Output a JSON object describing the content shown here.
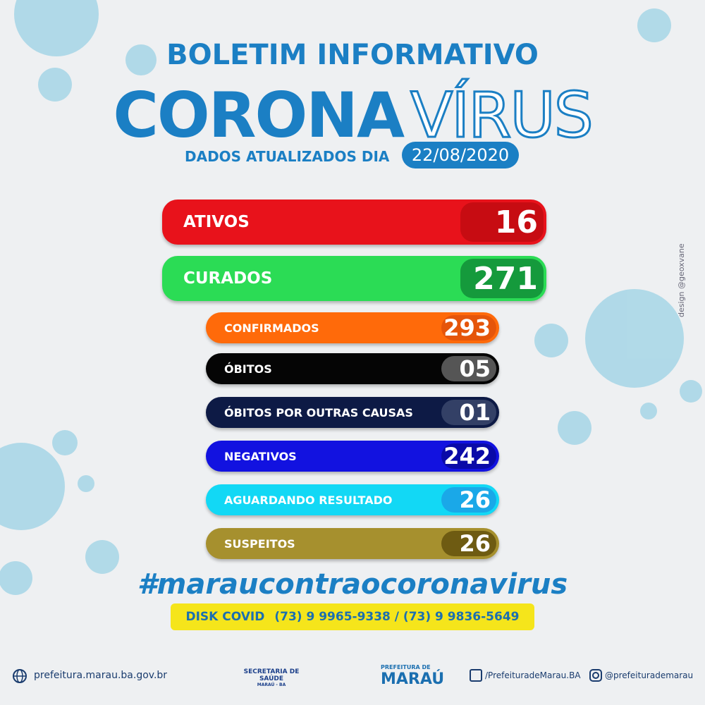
{
  "header": {
    "kicker": "BOLETIM INFORMATIVO",
    "title_bold": "CORONA",
    "title_outline": "VÍRUS",
    "updated_label": "DADOS ATUALIZADOS DIA",
    "date": "22/08/2020"
  },
  "main_rows": [
    {
      "label": "ATIVOS",
      "value": "16"
    },
    {
      "label": "CURADOS",
      "value": "271"
    }
  ],
  "rows": [
    {
      "label": "CONFIRMADOS",
      "value": "293"
    },
    {
      "label": "ÓBITOS",
      "value": "05"
    },
    {
      "label": "ÓBITOS POR OUTRAS CAUSAS",
      "value": "01"
    },
    {
      "label": "NEGATIVOS",
      "value": "242"
    },
    {
      "label": "AGUARDANDO RESULTADO",
      "value": "26"
    },
    {
      "label": "SUSPEITOS",
      "value": "26"
    }
  ],
  "hashtag": "#maraucontraocoronavirus",
  "disk": {
    "label": "DISK COVID",
    "phones": "(73) 9 9965-9338 / (73) 9 9836-5649"
  },
  "credit": "design @geoxvane",
  "footer": {
    "website": "prefeitura.marau.ba.gov.br",
    "secretaria": "SECRETARIA DE SAÚDE",
    "secretaria_place": "MARAÚ - BA",
    "prefeitura_top": "PREFEITURA DE",
    "prefeitura_name": "MARAÚ",
    "facebook": "/PrefeituradeMarau.BA",
    "instagram": "@prefeiturademarau"
  }
}
